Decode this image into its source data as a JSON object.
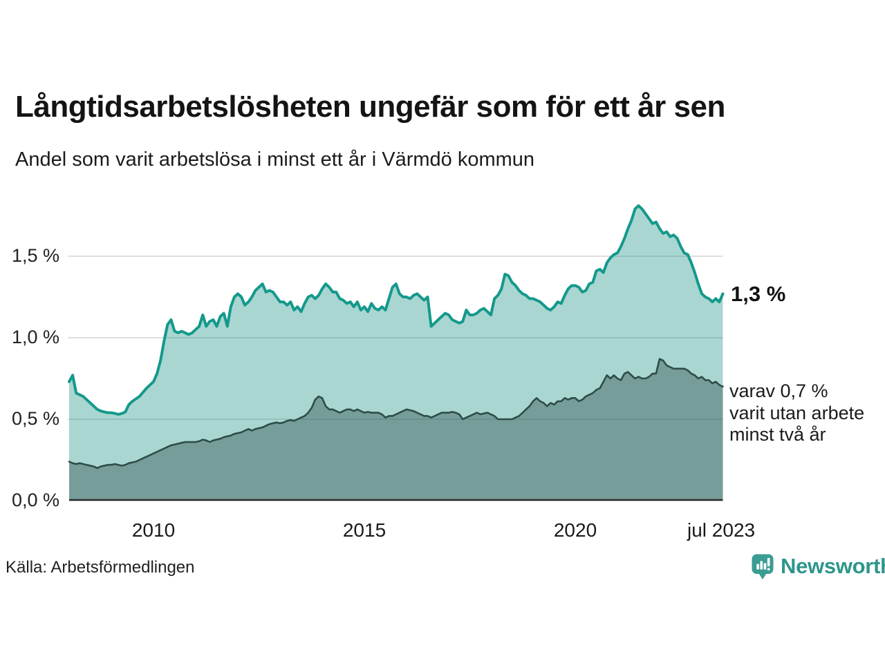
{
  "title": "Långtidsarbetslösheten ungefär som för ett år sen",
  "subtitle": "Andel som varit arbetslösa i minst ett år i Värmdö kommun",
  "source": "Källa: Arbetsförmedlingen",
  "logo": {
    "text": "Newsworthy"
  },
  "annotations": {
    "end_value_label": "1,3 %",
    "secondary_lines": [
      "varav 0,7 %",
      "varit utan arbete",
      "minst två år"
    ]
  },
  "colors": {
    "line_primary": "#14998c",
    "fill_primary": "rgba(20,140,128,0.36)",
    "line_secondary": "#2e4c48",
    "fill_secondary": "rgba(35,66,62,0.38)",
    "gridline": "#d4d4d4",
    "axis": "#2a2a2a",
    "brand_teal": "#2d968c"
  },
  "chart_data": {
    "type": "area",
    "title": "Långtidsarbetslösheten ungefär som för ett år sen",
    "subtitle": "Andel som varit arbetslösa i minst ett år i Värmdö kommun",
    "x_start_year": 2008.0,
    "x_end_year": 2023.5,
    "x_frequency": "monthly",
    "ylim": [
      0,
      1.9
    ],
    "grid": true,
    "y_ticks": [
      {
        "label": "0,0 %",
        "value": 0.0
      },
      {
        "label": "0,5 %",
        "value": 0.5
      },
      {
        "label": "1,0 %",
        "value": 1.0
      },
      {
        "label": "1,5 %",
        "value": 1.5
      }
    ],
    "x_ticks": [
      {
        "label": "2010",
        "year": 2010.0
      },
      {
        "label": "2015",
        "year": 2015.0
      },
      {
        "label": "2020",
        "year": 2020.0
      },
      {
        "label": "jul 2023",
        "year": 2023.46
      }
    ],
    "series": [
      {
        "name": "Andel arbetslösa minst ett år",
        "end_value_pct": 1.3,
        "peak_value_pct": 1.81,
        "values": [
          0.73,
          0.77,
          0.66,
          0.65,
          0.64,
          0.62,
          0.6,
          0.58,
          0.56,
          0.55,
          0.545,
          0.54,
          0.54,
          0.535,
          0.53,
          0.535,
          0.545,
          0.59,
          0.61,
          0.625,
          0.64,
          0.665,
          0.69,
          0.71,
          0.73,
          0.78,
          0.86,
          0.98,
          1.08,
          1.11,
          1.04,
          1.03,
          1.04,
          1.03,
          1.02,
          1.03,
          1.05,
          1.07,
          1.14,
          1.07,
          1.1,
          1.11,
          1.07,
          1.13,
          1.15,
          1.07,
          1.19,
          1.25,
          1.27,
          1.25,
          1.2,
          1.22,
          1.25,
          1.29,
          1.31,
          1.33,
          1.28,
          1.29,
          1.28,
          1.25,
          1.22,
          1.22,
          1.2,
          1.22,
          1.17,
          1.19,
          1.16,
          1.21,
          1.25,
          1.26,
          1.24,
          1.26,
          1.3,
          1.33,
          1.31,
          1.28,
          1.28,
          1.24,
          1.23,
          1.21,
          1.22,
          1.19,
          1.22,
          1.17,
          1.19,
          1.16,
          1.21,
          1.18,
          1.17,
          1.19,
          1.17,
          1.24,
          1.31,
          1.33,
          1.27,
          1.25,
          1.25,
          1.24,
          1.26,
          1.27,
          1.25,
          1.23,
          1.25,
          1.07,
          1.09,
          1.11,
          1.13,
          1.15,
          1.14,
          1.11,
          1.1,
          1.09,
          1.1,
          1.17,
          1.14,
          1.14,
          1.15,
          1.17,
          1.18,
          1.16,
          1.14,
          1.24,
          1.26,
          1.3,
          1.39,
          1.38,
          1.34,
          1.32,
          1.29,
          1.27,
          1.26,
          1.24,
          1.24,
          1.23,
          1.22,
          1.2,
          1.18,
          1.17,
          1.19,
          1.22,
          1.21,
          1.26,
          1.3,
          1.32,
          1.32,
          1.31,
          1.28,
          1.29,
          1.33,
          1.34,
          1.41,
          1.42,
          1.4,
          1.46,
          1.49,
          1.51,
          1.52,
          1.56,
          1.61,
          1.67,
          1.72,
          1.79,
          1.81,
          1.79,
          1.76,
          1.73,
          1.7,
          1.71,
          1.67,
          1.64,
          1.65,
          1.62,
          1.63,
          1.61,
          1.56,
          1.52,
          1.51,
          1.46,
          1.4,
          1.33,
          1.27,
          1.25,
          1.24,
          1.22,
          1.24,
          1.22,
          1.27
        ]
      },
      {
        "name": "varav utan arbete minst två år",
        "end_value_pct": 0.7,
        "values": [
          0.24,
          0.23,
          0.225,
          0.23,
          0.225,
          0.22,
          0.215,
          0.21,
          0.2,
          0.21,
          0.215,
          0.22,
          0.22,
          0.225,
          0.22,
          0.215,
          0.22,
          0.23,
          0.235,
          0.24,
          0.25,
          0.26,
          0.27,
          0.28,
          0.29,
          0.3,
          0.31,
          0.32,
          0.33,
          0.34,
          0.345,
          0.35,
          0.355,
          0.36,
          0.36,
          0.36,
          0.36,
          0.365,
          0.375,
          0.37,
          0.36,
          0.37,
          0.375,
          0.38,
          0.39,
          0.395,
          0.4,
          0.41,
          0.415,
          0.42,
          0.43,
          0.44,
          0.43,
          0.44,
          0.445,
          0.45,
          0.46,
          0.47,
          0.475,
          0.48,
          0.475,
          0.48,
          0.49,
          0.495,
          0.49,
          0.5,
          0.51,
          0.52,
          0.54,
          0.57,
          0.62,
          0.64,
          0.63,
          0.58,
          0.56,
          0.56,
          0.55,
          0.54,
          0.55,
          0.56,
          0.56,
          0.55,
          0.56,
          0.55,
          0.54,
          0.545,
          0.54,
          0.54,
          0.54,
          0.53,
          0.51,
          0.52,
          0.52,
          0.53,
          0.54,
          0.55,
          0.56,
          0.555,
          0.55,
          0.54,
          0.53,
          0.52,
          0.52,
          0.51,
          0.52,
          0.53,
          0.54,
          0.54,
          0.54,
          0.545,
          0.54,
          0.53,
          0.5,
          0.51,
          0.52,
          0.53,
          0.54,
          0.53,
          0.535,
          0.54,
          0.53,
          0.52,
          0.5,
          0.5,
          0.5,
          0.5,
          0.5,
          0.51,
          0.52,
          0.54,
          0.56,
          0.58,
          0.61,
          0.63,
          0.61,
          0.6,
          0.58,
          0.6,
          0.59,
          0.61,
          0.61,
          0.63,
          0.62,
          0.63,
          0.63,
          0.61,
          0.62,
          0.64,
          0.65,
          0.66,
          0.68,
          0.69,
          0.73,
          0.77,
          0.75,
          0.77,
          0.75,
          0.74,
          0.78,
          0.79,
          0.77,
          0.75,
          0.76,
          0.75,
          0.75,
          0.76,
          0.78,
          0.78,
          0.87,
          0.86,
          0.83,
          0.82,
          0.81,
          0.81,
          0.81,
          0.81,
          0.8,
          0.78,
          0.77,
          0.75,
          0.76,
          0.74,
          0.74,
          0.72,
          0.73,
          0.71,
          0.7
        ]
      }
    ]
  }
}
